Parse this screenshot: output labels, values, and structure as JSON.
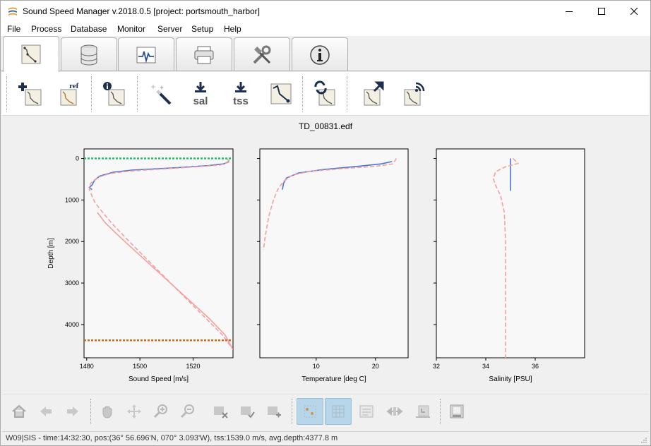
{
  "window": {
    "title": "Sound Speed Manager v.2018.0.5 [project: portsmouth_harbor]"
  },
  "menu": [
    "File",
    "Process",
    "Database",
    "Monitor",
    "Server",
    "Setup",
    "Help"
  ],
  "tabs": [
    {
      "icon": "profile-editor-icon",
      "active": true
    },
    {
      "icon": "database-icon",
      "active": false
    },
    {
      "icon": "monitor-icon",
      "active": false
    },
    {
      "icon": "server-icon",
      "active": false
    },
    {
      "icon": "setup-tools-icon",
      "active": false
    },
    {
      "icon": "info-icon",
      "active": false
    }
  ],
  "toolbar": {
    "ref_label": "ref",
    "sal_label": "sal",
    "tss_label": "tss"
  },
  "plot": {
    "title": "TD_00831.edf"
  },
  "chart_data": [
    {
      "type": "line",
      "xlabel": "Sound Speed [m/s]",
      "ylabel": "Depth [m]",
      "xticks": [
        "1480",
        "1500",
        "1520"
      ],
      "yticks": [
        "0",
        "1000",
        "2000",
        "3000",
        "4000"
      ],
      "xlim": [
        1479,
        1535
      ],
      "ylim": [
        4800,
        -230
      ],
      "grid": false,
      "series": [
        {
          "role": "processed",
          "color": "#4a74d4",
          "style": "solid",
          "x": [
            1533.5,
            1531.5,
            1526,
            1512,
            1497,
            1490,
            1485,
            1483,
            1482,
            1481,
            1482
          ],
          "y": [
            75,
            130,
            170,
            230,
            280,
            330,
            420,
            520,
            640,
            700,
            750
          ]
        },
        {
          "role": "reference",
          "color": "#f4a0a0",
          "style": "dashed",
          "x": [
            1532.5,
            1534,
            1530,
            1512,
            1497,
            1489,
            1484,
            1481.5,
            1481,
            1482,
            1483,
            1486,
            1490,
            1496,
            1503,
            1510,
            1517,
            1524,
            1531,
            1535
          ],
          "y": [
            0,
            80,
            160,
            240,
            300,
            360,
            460,
            600,
            750,
            900,
            1050,
            1300,
            1600,
            2000,
            2450,
            2900,
            3350,
            3800,
            4250,
            4600
          ]
        },
        {
          "role": "reference-extension",
          "color": "#f4a0a0",
          "style": "solid",
          "x": [
            1484,
            1487,
            1491,
            1496,
            1502,
            1508,
            1514,
            1520,
            1526,
            1532,
            1535
          ],
          "y": [
            1300,
            1550,
            1800,
            2100,
            2450,
            2800,
            3150,
            3500,
            3850,
            4250,
            4600
          ]
        },
        {
          "role": "min-depth-limit",
          "color": "#22bb66",
          "style": "dotted",
          "x": [
            1479,
            1535
          ],
          "y": [
            0,
            0
          ]
        },
        {
          "role": "max-depth-limit",
          "color": "#dd6611",
          "style": "dotted",
          "x": [
            1479,
            1535
          ],
          "y": [
            4380,
            4380
          ]
        }
      ]
    },
    {
      "type": "line",
      "xlabel": "Temperature [deg C]",
      "ylabel": "",
      "xticks": [
        "10",
        "20"
      ],
      "yticks": [],
      "xlim": [
        0.5,
        25.5
      ],
      "ylim": [
        4800,
        -230
      ],
      "grid": false,
      "series": [
        {
          "role": "processed",
          "color": "#4a74d4",
          "style": "solid",
          "x": [
            22.8,
            21,
            17,
            11,
            7,
            5,
            4.5,
            4.3
          ],
          "y": [
            75,
            130,
            190,
            270,
            350,
            470,
            600,
            750
          ]
        },
        {
          "role": "reference",
          "color": "#f4a0a0",
          "style": "dashed",
          "x": [
            23.5,
            23,
            20,
            14,
            9,
            6,
            4.5,
            3.5,
            2.8,
            2,
            1.5,
            1.1
          ],
          "y": [
            0,
            130,
            190,
            250,
            310,
            400,
            550,
            750,
            1000,
            1400,
            1800,
            2200
          ]
        }
      ]
    },
    {
      "type": "line",
      "xlabel": "Salinity [PSU]",
      "ylabel": "",
      "xticks": [
        "32",
        "34",
        "36"
      ],
      "yticks": [],
      "xlim": [
        32,
        38
      ],
      "ylim": [
        4800,
        -230
      ],
      "grid": false,
      "series": [
        {
          "role": "processed",
          "color": "#4a74d4",
          "style": "solid",
          "x": [
            35,
            35
          ],
          "y": [
            0,
            780
          ]
        },
        {
          "role": "reference",
          "color": "#f4a0a0",
          "style": "dashed",
          "x": [
            35.1,
            35.3,
            34.8,
            34.4,
            34.3,
            34.4,
            34.6,
            34.75,
            34.8,
            34.8
          ],
          "y": [
            0,
            120,
            200,
            320,
            480,
            650,
            900,
            1300,
            2000,
            4800
          ]
        }
      ]
    }
  ],
  "statusbar": {
    "text": "W09|SIS  -  time:14:32:30, pos:(36° 56.696'N, 070°  3.093'W),  tss:1539.0 m/s,  avg.depth:4377.8 m"
  }
}
